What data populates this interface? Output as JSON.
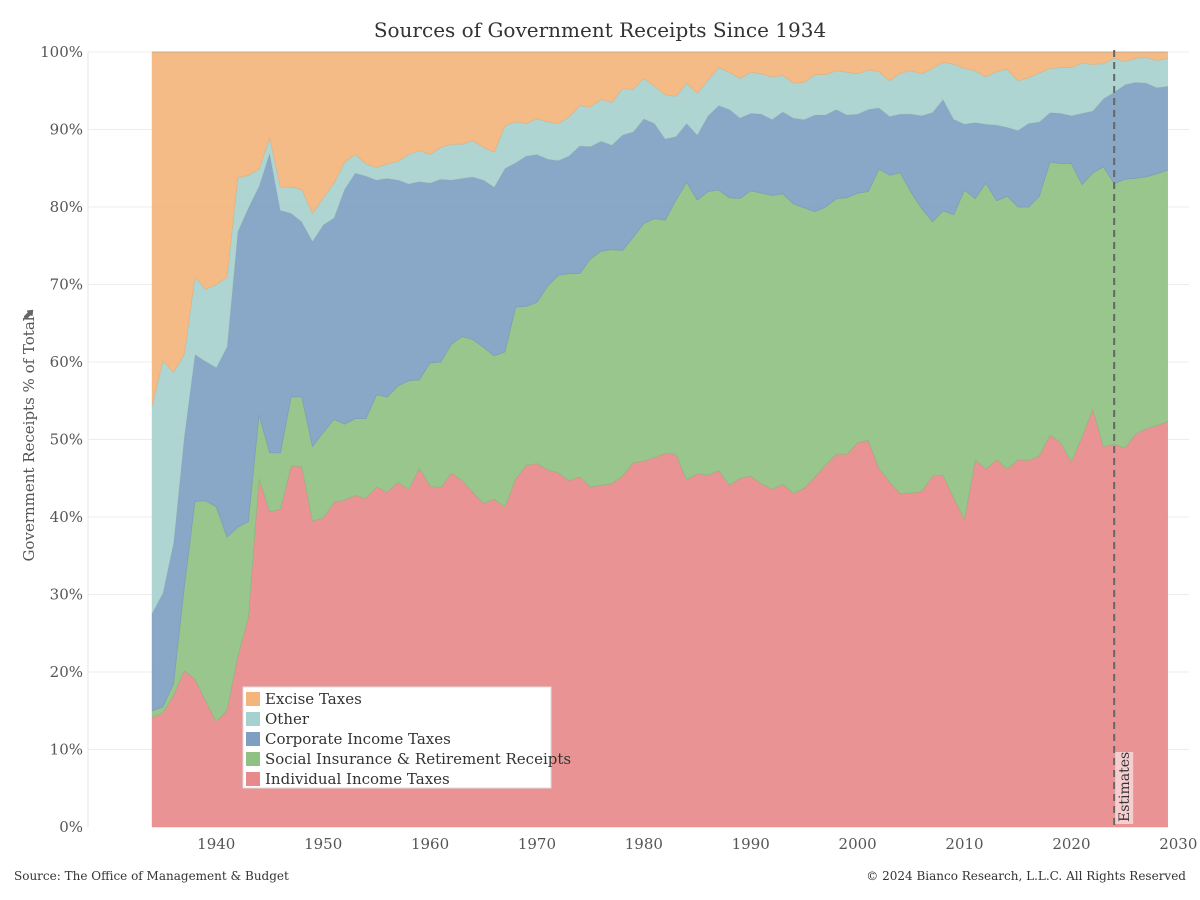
{
  "chart_data": {
    "type": "area",
    "stacked": true,
    "percent": true,
    "title": "Sources of Government Receipts Since 1934",
    "ylabel": "Government Receipts % of Total",
    "xlabel": "",
    "xlim": [
      1928,
      2031
    ],
    "ylim": [
      0,
      100
    ],
    "x_ticks": [
      1940,
      1950,
      1960,
      1970,
      1980,
      1990,
      2000,
      2010,
      2020,
      2030
    ],
    "y_ticks": [
      0,
      10,
      20,
      30,
      40,
      50,
      60,
      70,
      80,
      90,
      100
    ],
    "y_tick_labels": [
      "0%",
      "10%",
      "20%",
      "30%",
      "40%",
      "50%",
      "60%",
      "70%",
      "80%",
      "90%",
      "100%"
    ],
    "grid": "horizontal",
    "legend_placement": "bottom-left",
    "legend": [
      "Excise Taxes",
      "Other",
      "Corporate Income Taxes",
      "Social Insurance & Retirement Receipts",
      "Individual Income Taxes"
    ],
    "annotation": {
      "x": 2024,
      "label": "Estimates"
    },
    "x": [
      1934,
      1935,
      1936,
      1937,
      1938,
      1939,
      1940,
      1941,
      1942,
      1943,
      1944,
      1945,
      1946,
      1947,
      1948,
      1949,
      1950,
      1951,
      1952,
      1953,
      1954,
      1955,
      1956,
      1957,
      1958,
      1959,
      1960,
      1961,
      1962,
      1963,
      1964,
      1965,
      1966,
      1967,
      1968,
      1969,
      1970,
      1971,
      1972,
      1973,
      1974,
      1975,
      1976,
      1977,
      1978,
      1979,
      1980,
      1981,
      1982,
      1983,
      1984,
      1985,
      1986,
      1987,
      1988,
      1989,
      1990,
      1991,
      1992,
      1993,
      1994,
      1995,
      1996,
      1997,
      1998,
      1999,
      2000,
      2001,
      2002,
      2003,
      2004,
      2005,
      2006,
      2007,
      2008,
      2009,
      2010,
      2011,
      2012,
      2013,
      2014,
      2015,
      2016,
      2017,
      2018,
      2019,
      2020,
      2021,
      2022,
      2023,
      2024,
      2025,
      2026,
      2027,
      2028,
      2029
    ],
    "series": [
      {
        "name": "Individual Income Taxes",
        "color": "#e88a8b",
        "values": [
          14.2,
          14.7,
          17.0,
          20.2,
          19.1,
          16.3,
          13.6,
          15.1,
          22.0,
          27.1,
          45.0,
          40.7,
          41.0,
          46.6,
          46.5,
          39.5,
          39.9,
          41.9,
          42.2,
          42.8,
          42.4,
          43.9,
          43.2,
          44.5,
          43.6,
          46.3,
          44.0,
          43.8,
          45.7,
          44.7,
          43.2,
          41.8,
          42.3,
          41.3,
          44.9,
          46.7,
          46.9,
          46.1,
          45.7,
          44.7,
          45.2,
          43.9,
          44.1,
          44.3,
          45.3,
          47.0,
          47.2,
          47.7,
          48.2,
          48.1,
          44.8,
          45.6,
          45.4,
          46.0,
          44.1,
          45.0,
          45.3,
          44.3,
          43.6,
          44.2,
          43.1,
          43.7,
          45.2,
          46.7,
          48.1,
          48.1,
          49.6,
          49.9,
          46.3,
          44.5,
          43.0,
          43.1,
          43.3,
          45.3,
          45.4,
          43.5,
          41.5,
          47.4,
          46.2,
          47.4,
          46.2,
          47.4,
          47.3,
          47.9,
          50.6,
          49.6,
          47.1,
          50.4,
          53.9,
          49.1,
          49.4,
          48.9,
          50.7,
          51.4,
          51.8,
          52.1
        ]
      },
      {
        "name": "Social Insurance & Retirement Receipts",
        "color": "#8fc182",
        "values": [
          0.8,
          0.8,
          1.5,
          10.7,
          22.9,
          25.8,
          27.7,
          22.3,
          16.7,
          12.3,
          8.2,
          7.6,
          7.3,
          8.9,
          9.0,
          9.6,
          11.0,
          10.7,
          9.8,
          9.9,
          10.3,
          11.9,
          12.3,
          12.4,
          14.0,
          11.4,
          15.9,
          16.2,
          16.6,
          18.6,
          19.7,
          20.1,
          18.5,
          20.0,
          22.2,
          20.5,
          20.8,
          23.7,
          25.5,
          26.7,
          26.2,
          29.4,
          30.2,
          30.2,
          29.1,
          29.1,
          30.7,
          30.8,
          30.1,
          32.8,
          38.4,
          35.3,
          36.6,
          36.2,
          37.1,
          36.1,
          36.8,
          37.5,
          37.9,
          37.5,
          37.3,
          36.2,
          34.2,
          33.3,
          33.0,
          33.1,
          32.2,
          32.1,
          38.6,
          39.6,
          41.4,
          38.8,
          36.5,
          32.8,
          34.1,
          37.5,
          44.4,
          33.7,
          36.9,
          33.4,
          35.2,
          32.6,
          32.7,
          33.5,
          35.2,
          36.0,
          38.5,
          32.5,
          30.5,
          36.1,
          33.6,
          34.7,
          33.0,
          32.5,
          32.5,
          32.3
        ]
      },
      {
        "name": "Corporate Income Taxes",
        "color": "#7f9fc2",
        "values": [
          12.6,
          14.7,
          18.2,
          19.5,
          19.0,
          18.0,
          18.0,
          24.6,
          38.1,
          40.5,
          29.5,
          38.7,
          31.3,
          23.7,
          22.6,
          26.5,
          26.8,
          26.0,
          30.3,
          31.7,
          31.3,
          27.7,
          28.2,
          26.6,
          25.4,
          25.6,
          23.2,
          23.6,
          21.2,
          20.4,
          21.0,
          21.6,
          21.8,
          23.7,
          18.6,
          19.4,
          19.1,
          16.4,
          14.8,
          15.2,
          16.5,
          14.5,
          14.2,
          13.5,
          14.9,
          13.6,
          13.5,
          12.3,
          10.5,
          8.2,
          7.6,
          8.4,
          9.8,
          10.9,
          11.4,
          10.4,
          10.0,
          10.2,
          9.8,
          10.6,
          11.1,
          11.4,
          12.5,
          11.9,
          11.5,
          10.7,
          10.2,
          10.6,
          7.9,
          7.6,
          7.6,
          10.1,
          12.0,
          14.1,
          14.4,
          12.6,
          8.9,
          9.8,
          7.6,
          9.8,
          8.9,
          9.9,
          10.8,
          9.6,
          6.4,
          6.5,
          6.2,
          9.2,
          8.0,
          8.8,
          11.8,
          12.2,
          12.4,
          12.1,
          11.1,
          10.8
        ]
      },
      {
        "name": "Other",
        "color": "#a7d1ce",
        "values": [
          26.8,
          30.0,
          22.0,
          10.6,
          10.0,
          9.3,
          10.7,
          9.0,
          7.0,
          4.2,
          2.2,
          2.0,
          3.0,
          3.4,
          4.2,
          3.6,
          3.5,
          4.5,
          3.5,
          2.4,
          1.6,
          1.6,
          1.9,
          2.4,
          3.8,
          4.0,
          3.7,
          4.1,
          4.6,
          4.4,
          4.7,
          4.2,
          4.5,
          5.5,
          5.3,
          4.2,
          4.6,
          4.8,
          4.8,
          5.0,
          5.2,
          5.1,
          5.4,
          5.5,
          6.0,
          5.5,
          5.2,
          4.8,
          5.7,
          5.2,
          5.2,
          5.4,
          4.6,
          4.9,
          4.8,
          5.1,
          5.3,
          5.2,
          5.5,
          4.7,
          4.5,
          4.8,
          5.2,
          5.2,
          5.0,
          5.5,
          5.2,
          5.1,
          4.7,
          4.6,
          5.3,
          5.6,
          5.4,
          5.7,
          4.8,
          7.3,
          7.5,
          6.7,
          6.1,
          6.9,
          7.5,
          6.4,
          5.9,
          6.3,
          5.7,
          5.9,
          6.2,
          6.5,
          6.0,
          4.5,
          4.4,
          3.0,
          3.1,
          3.3,
          3.5,
          3.6
        ]
      },
      {
        "name": "Excise Taxes",
        "color": "#f3b57c",
        "values": [
          45.6,
          39.8,
          41.3,
          39.0,
          29.0,
          30.6,
          30.0,
          29.0,
          16.2,
          15.9,
          15.1,
          11.0,
          17.4,
          17.4,
          17.7,
          20.8,
          18.8,
          16.9,
          14.2,
          13.2,
          14.4,
          14.9,
          14.4,
          14.1,
          13.2,
          12.7,
          13.2,
          12.3,
          11.9,
          11.9,
          11.4,
          12.3,
          12.9,
          9.5,
          9.0,
          9.2,
          8.6,
          9.0,
          9.2,
          8.4,
          6.9,
          7.1,
          6.1,
          6.5,
          4.7,
          4.8,
          3.4,
          4.4,
          5.5,
          5.7,
          4.0,
          5.3,
          3.6,
          2.0,
          2.6,
          3.4,
          2.6,
          2.8,
          3.2,
          3.0,
          4.0,
          3.9,
          2.9,
          2.9,
          2.4,
          2.6,
          2.8,
          2.3,
          2.5,
          3.7,
          2.7,
          2.4,
          2.8,
          2.1,
          1.3,
          1.6,
          2.2,
          2.4,
          3.2,
          2.5,
          2.2,
          3.7,
          3.3,
          2.7,
          2.1,
          2.0,
          2.0,
          1.4,
          1.6,
          1.5,
          0.8,
          1.2,
          0.8,
          0.7,
          1.1,
          0.8
        ]
      }
    ]
  },
  "footer": {
    "source": "Source: The Office of Management & Budget",
    "copyright": "© 2024 Bianco Research, L.L.C. All Rights Reserved"
  }
}
